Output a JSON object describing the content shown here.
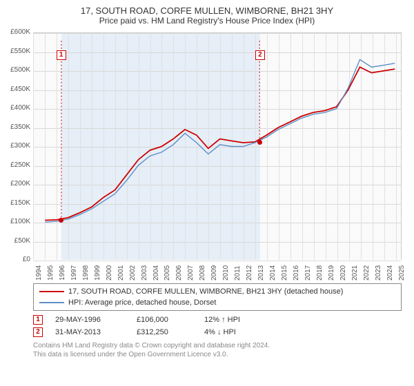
{
  "title": "17, SOUTH ROAD, CORFE MULLEN, WIMBORNE, BH21 3HY",
  "subtitle": "Price paid vs. HM Land Registry's House Price Index (HPI)",
  "chart": {
    "type": "line",
    "background_color": "#fafafa",
    "shade_color": "#e6eef7",
    "grid_color": "#d8d8d8",
    "xlim": [
      1994,
      2025.5
    ],
    "ylim": [
      0,
      600000
    ],
    "ytick_step": 50000,
    "yticks_fmt": [
      "£0",
      "£50K",
      "£100K",
      "£150K",
      "£200K",
      "£250K",
      "£300K",
      "£350K",
      "£400K",
      "£450K",
      "£500K",
      "£550K",
      "£600K"
    ],
    "xticks": [
      1994,
      1995,
      1996,
      1997,
      1998,
      1999,
      2000,
      2001,
      2002,
      2003,
      2004,
      2005,
      2006,
      2007,
      2008,
      2009,
      2010,
      2011,
      2012,
      2013,
      2014,
      2015,
      2016,
      2017,
      2018,
      2019,
      2020,
      2021,
      2022,
      2023,
      2024,
      2025
    ],
    "label_fontsize": 10,
    "series": [
      {
        "name": "17, SOUTH ROAD, CORFE MULLEN, WIMBORNE, BH21 3HY (detached house)",
        "color": "#cc0000",
        "line_width": 1.8,
        "x": [
          1995,
          1996,
          1997,
          1998,
          1999,
          2000,
          2001,
          2002,
          2003,
          2004,
          2005,
          2006,
          2007,
          2008,
          2009,
          2010,
          2011,
          2012,
          2013,
          2014,
          2015,
          2016,
          2017,
          2018,
          2019,
          2020,
          2021,
          2022,
          2023,
          2024,
          2025
        ],
        "y": [
          105000,
          106000,
          112000,
          125000,
          140000,
          165000,
          185000,
          225000,
          265000,
          290000,
          300000,
          320000,
          345000,
          330000,
          295000,
          320000,
          315000,
          310000,
          312000,
          330000,
          350000,
          365000,
          380000,
          390000,
          395000,
          405000,
          450000,
          510000,
          495000,
          500000,
          505000
        ]
      },
      {
        "name": "HPI: Average price, detached house, Dorset",
        "color": "#5b8fc7",
        "line_width": 1.4,
        "x": [
          1995,
          1996,
          1997,
          1998,
          1999,
          2000,
          2001,
          2002,
          2003,
          2004,
          2005,
          2006,
          2007,
          2008,
          2009,
          2010,
          2011,
          2012,
          2013,
          2014,
          2015,
          2016,
          2017,
          2018,
          2019,
          2020,
          2021,
          2022,
          2023,
          2024,
          2025
        ],
        "y": [
          100000,
          102000,
          108000,
          120000,
          135000,
          155000,
          175000,
          210000,
          250000,
          275000,
          285000,
          305000,
          335000,
          310000,
          280000,
          305000,
          300000,
          300000,
          310000,
          325000,
          345000,
          360000,
          375000,
          385000,
          390000,
          400000,
          455000,
          530000,
          510000,
          515000,
          520000
        ]
      }
    ],
    "markers": [
      {
        "label": "1",
        "x": 1996.4,
        "y": 106000,
        "box_y_top": 555000
      },
      {
        "label": "2",
        "x": 2013.4,
        "y": 312250,
        "box_y_top": 555000
      }
    ],
    "marker_vline_dash": "2,3"
  },
  "legend": {
    "items": [
      {
        "color": "#cc0000",
        "text": "17, SOUTH ROAD, CORFE MULLEN, WIMBORNE, BH21 3HY (detached house)"
      },
      {
        "color": "#5b8fc7",
        "text": "HPI: Average price, detached house, Dorset"
      }
    ]
  },
  "transactions": [
    {
      "label": "1",
      "date": "29-MAY-1996",
      "price": "£106,000",
      "delta": "12% ↑ HPI"
    },
    {
      "label": "2",
      "date": "31-MAY-2013",
      "price": "£312,250",
      "delta": "4% ↓ HPI"
    }
  ],
  "footer": {
    "line1": "Contains HM Land Registry data © Crown copyright and database right 2024.",
    "line2": "This data is licensed under the Open Government Licence v3.0."
  }
}
